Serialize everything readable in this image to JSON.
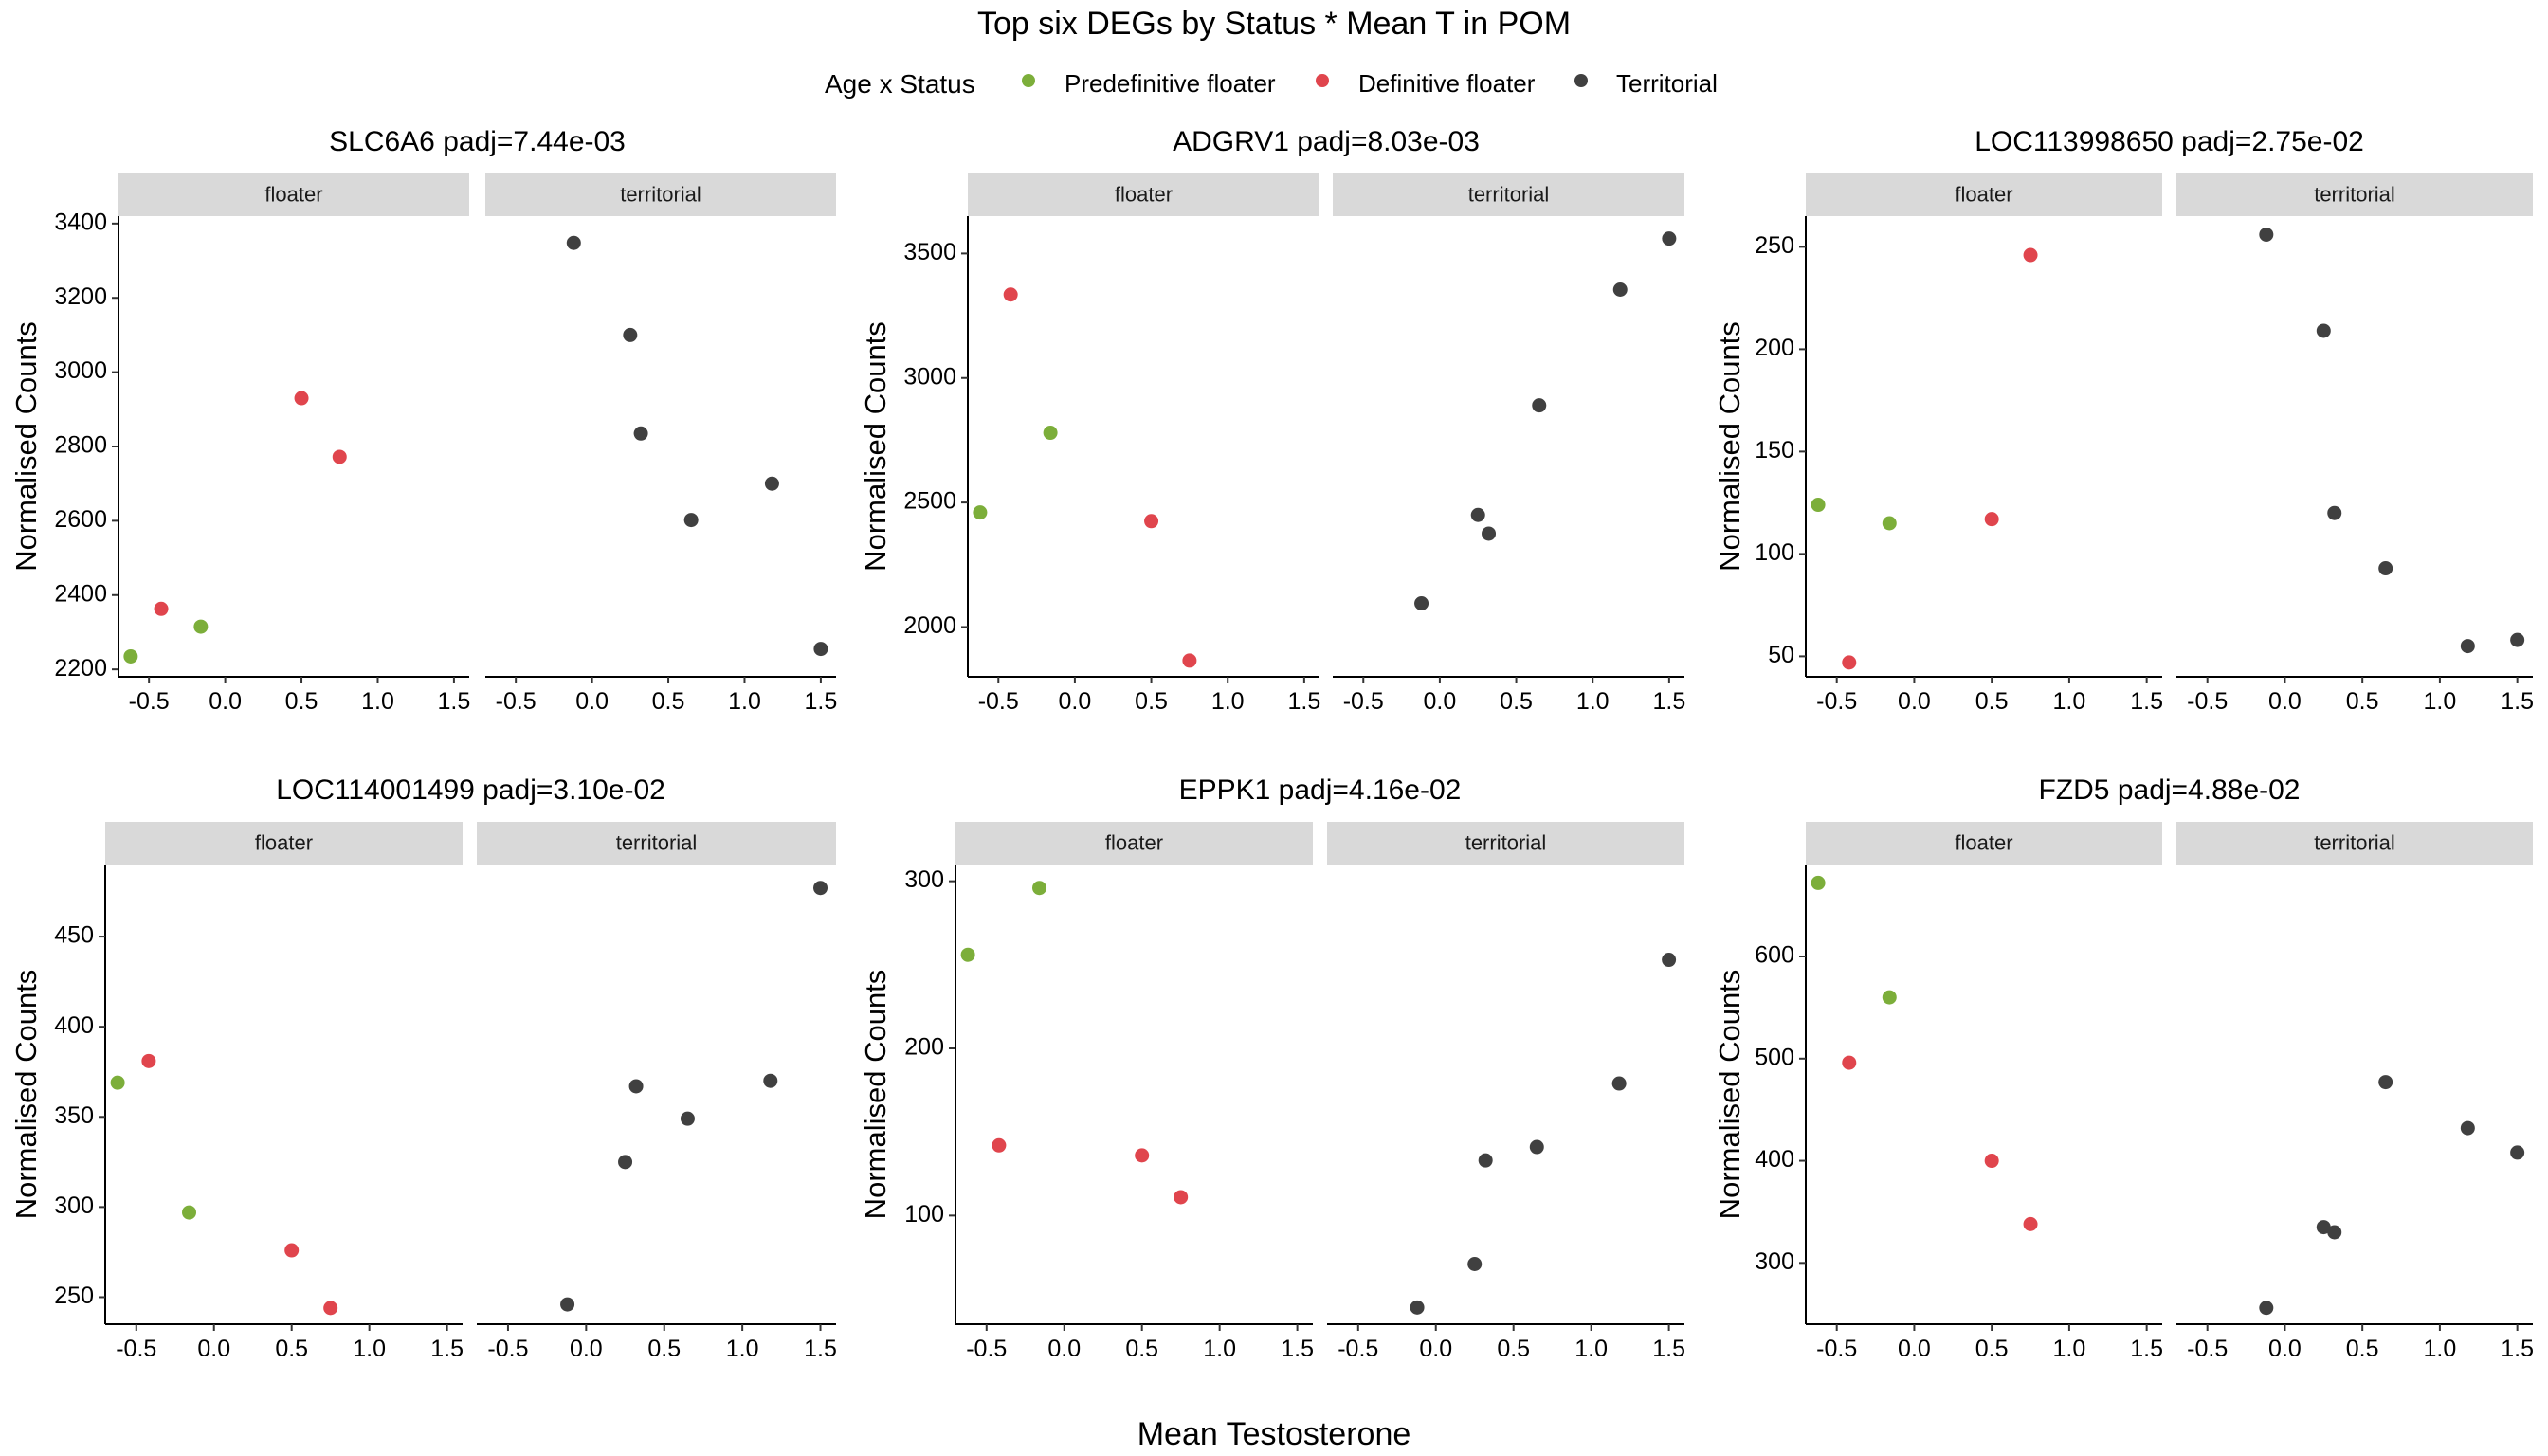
{
  "figure": {
    "title": "Top six DEGs by Status * Mean T in POM",
    "xlabel": "Mean Testosterone",
    "ylabel": "Normalised Counts"
  },
  "legend": {
    "title": "Age x Status",
    "position": "top-center",
    "entries": [
      {
        "label": "Predefinitive floater",
        "color": "#7cae3a"
      },
      {
        "label": "Definitive floater",
        "color": "#e0454d"
      },
      {
        "label": "Territorial",
        "color": "#404040"
      }
    ]
  },
  "facets": [
    "floater",
    "territorial"
  ],
  "chart_data": [
    {
      "type": "scatter",
      "title": "SLC6A6 padj=7.44e-03",
      "xlabel": "Mean Testosterone",
      "ylabel": "Normalised Counts",
      "xlim": [
        -0.7,
        1.6
      ],
      "ylim": [
        2180,
        3420
      ],
      "x_ticks": [
        -0.5,
        0.0,
        0.5,
        1.0,
        1.5
      ],
      "x_tick_labels": [
        "-0.5",
        "0.0",
        "0.5",
        "1.0",
        "1.5"
      ],
      "y_ticks": [
        2200,
        2400,
        2600,
        2800,
        3000,
        3200,
        3400
      ],
      "y_tick_labels": [
        "2200",
        "2400",
        "2600",
        "2800",
        "3000",
        "3200",
        "3400"
      ],
      "series": [
        {
          "name": "Predefinitive floater",
          "facet": "floater",
          "x": [
            -0.62,
            -0.16
          ],
          "y": [
            2235,
            2315
          ]
        },
        {
          "name": "Definitive floater",
          "facet": "floater",
          "x": [
            -0.42,
            0.5,
            0.75
          ],
          "y": [
            2363,
            2930,
            2772
          ]
        },
        {
          "name": "Territorial",
          "facet": "territorial",
          "x": [
            -0.12,
            0.25,
            0.32,
            0.65,
            1.18,
            1.5
          ],
          "y": [
            3348,
            3100,
            2835,
            2602,
            2700,
            2255
          ]
        }
      ]
    },
    {
      "type": "scatter",
      "title": "ADGRV1 padj=8.03e-03",
      "xlabel": "Mean Testosterone",
      "ylabel": "Normalised Counts",
      "xlim": [
        -0.7,
        1.6
      ],
      "ylim": [
        1800,
        3650
      ],
      "x_ticks": [
        -0.5,
        0.0,
        0.5,
        1.0,
        1.5
      ],
      "x_tick_labels": [
        "-0.5",
        "0.0",
        "0.5",
        "1.0",
        "1.5"
      ],
      "y_ticks": [
        2000,
        2500,
        3000,
        3500
      ],
      "y_tick_labels": [
        "2000",
        "2500",
        "3000",
        "3500"
      ],
      "series": [
        {
          "name": "Predefinitive floater",
          "facet": "floater",
          "x": [
            -0.62,
            -0.16
          ],
          "y": [
            2460,
            2780
          ]
        },
        {
          "name": "Definitive floater",
          "facet": "floater",
          "x": [
            -0.42,
            0.5,
            0.75
          ],
          "y": [
            3335,
            2425,
            1865
          ]
        },
        {
          "name": "Territorial",
          "facet": "territorial",
          "x": [
            -0.12,
            0.25,
            0.32,
            0.65,
            1.18,
            1.5
          ],
          "y": [
            2095,
            2450,
            2375,
            2890,
            3355,
            3560
          ]
        }
      ]
    },
    {
      "type": "scatter",
      "title": "LOC113998650 padj=2.75e-02",
      "xlabel": "Mean Testosterone",
      "ylabel": "Normalised Counts",
      "xlim": [
        -0.7,
        1.6
      ],
      "ylim": [
        40,
        265
      ],
      "x_ticks": [
        -0.5,
        0.0,
        0.5,
        1.0,
        1.5
      ],
      "x_tick_labels": [
        "-0.5",
        "0.0",
        "0.5",
        "1.0",
        "1.5"
      ],
      "y_ticks": [
        50,
        100,
        150,
        200,
        250
      ],
      "y_tick_labels": [
        "50",
        "100",
        "150",
        "200",
        "250"
      ],
      "series": [
        {
          "name": "Predefinitive floater",
          "facet": "floater",
          "x": [
            -0.62,
            -0.16
          ],
          "y": [
            124,
            115
          ]
        },
        {
          "name": "Definitive floater",
          "facet": "floater",
          "x": [
            -0.42,
            0.5,
            0.75
          ],
          "y": [
            47,
            117,
            246
          ]
        },
        {
          "name": "Territorial",
          "facet": "territorial",
          "x": [
            -0.12,
            0.25,
            0.32,
            0.65,
            1.18,
            1.5
          ],
          "y": [
            256,
            209,
            120,
            93,
            55,
            58
          ]
        }
      ]
    },
    {
      "type": "scatter",
      "title": "LOC114001499 padj=3.10e-02",
      "xlabel": "Mean Testosterone",
      "ylabel": "Normalised Counts",
      "xlim": [
        -0.7,
        1.6
      ],
      "ylim": [
        235,
        490
      ],
      "x_ticks": [
        -0.5,
        0.0,
        0.5,
        1.0,
        1.5
      ],
      "x_tick_labels": [
        "-0.5",
        "0.0",
        "0.5",
        "1.0",
        "1.5"
      ],
      "y_ticks": [
        250,
        300,
        350,
        400,
        450
      ],
      "y_tick_labels": [
        "250",
        "300",
        "350",
        "400",
        "450"
      ],
      "series": [
        {
          "name": "Predefinitive floater",
          "facet": "floater",
          "x": [
            -0.62,
            -0.16
          ],
          "y": [
            369,
            297
          ]
        },
        {
          "name": "Definitive floater",
          "facet": "floater",
          "x": [
            -0.42,
            0.5,
            0.75
          ],
          "y": [
            381,
            276,
            244
          ]
        },
        {
          "name": "Territorial",
          "facet": "territorial",
          "x": [
            -0.12,
            0.25,
            0.32,
            0.65,
            1.18,
            1.5
          ],
          "y": [
            246,
            325,
            367,
            349,
            370,
            477
          ]
        }
      ]
    },
    {
      "type": "scatter",
      "title": "EPPK1 padj=4.16e-02",
      "xlabel": "Mean Testosterone",
      "ylabel": "Normalised Counts",
      "xlim": [
        -0.7,
        1.6
      ],
      "ylim": [
        35,
        310
      ],
      "x_ticks": [
        -0.5,
        0.0,
        0.5,
        1.0,
        1.5
      ],
      "x_tick_labels": [
        "-0.5",
        "0.0",
        "0.5",
        "1.0",
        "1.5"
      ],
      "y_ticks": [
        100,
        200,
        300
      ],
      "y_tick_labels": [
        "100",
        "200",
        "300"
      ],
      "series": [
        {
          "name": "Predefinitive floater",
          "facet": "floater",
          "x": [
            -0.62,
            -0.16
          ],
          "y": [
            256,
            296
          ]
        },
        {
          "name": "Definitive floater",
          "facet": "floater",
          "x": [
            -0.42,
            0.5,
            0.75
          ],
          "y": [
            142,
            136,
            111
          ]
        },
        {
          "name": "Territorial",
          "facet": "territorial",
          "x": [
            -0.12,
            0.25,
            0.32,
            0.65,
            1.18,
            1.5
          ],
          "y": [
            45,
            71,
            133,
            141,
            179,
            253
          ]
        }
      ]
    },
    {
      "type": "scatter",
      "title": "FZD5 padj=4.88e-02",
      "xlabel": "Mean Testosterone",
      "ylabel": "Normalised Counts",
      "xlim": [
        -0.7,
        1.6
      ],
      "ylim": [
        240,
        690
      ],
      "x_ticks": [
        -0.5,
        0.0,
        0.5,
        1.0,
        1.5
      ],
      "x_tick_labels": [
        "-0.5",
        "0.0",
        "0.5",
        "1.0",
        "1.5"
      ],
      "y_ticks": [
        300,
        400,
        500,
        600
      ],
      "y_tick_labels": [
        "300",
        "400",
        "500",
        "600"
      ],
      "series": [
        {
          "name": "Predefinitive floater",
          "facet": "floater",
          "x": [
            -0.62,
            -0.16
          ],
          "y": [
            672,
            560
          ]
        },
        {
          "name": "Definitive floater",
          "facet": "floater",
          "x": [
            -0.42,
            0.5,
            0.75
          ],
          "y": [
            496,
            400,
            338
          ]
        },
        {
          "name": "Territorial",
          "facet": "territorial",
          "x": [
            -0.12,
            0.25,
            0.32,
            0.65,
            1.18,
            1.5
          ],
          "y": [
            256,
            335,
            330,
            477,
            432,
            408
          ]
        }
      ]
    }
  ]
}
